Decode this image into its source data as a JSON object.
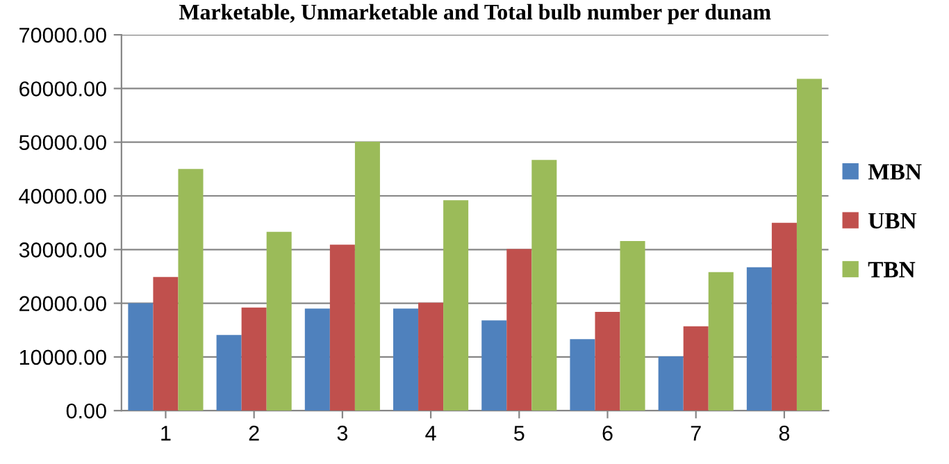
{
  "chart_data": {
    "type": "bar",
    "title": "Marketable, Unmarketable and Total bulb number per dunam",
    "categories": [
      "1",
      "2",
      "3",
      "4",
      "5",
      "6",
      "7",
      "8"
    ],
    "series": [
      {
        "name": "MBN",
        "color": "#4f81bd",
        "values": [
          20000,
          14100,
          19000,
          19000,
          16800,
          13300,
          10100,
          26700
        ]
      },
      {
        "name": "UBN",
        "color": "#c0504d",
        "values": [
          24900,
          19200,
          30900,
          20100,
          30100,
          18400,
          15700,
          35000
        ]
      },
      {
        "name": "TBN",
        "color": "#9bbb59",
        "values": [
          45000,
          33300,
          50100,
          39200,
          46700,
          31600,
          25800,
          61800
        ]
      }
    ],
    "ylim": [
      0,
      70000
    ],
    "yticks": [
      {
        "value": 0,
        "label": "0.00"
      },
      {
        "value": 10000,
        "label": "10000.00"
      },
      {
        "value": 20000,
        "label": "20000.00"
      },
      {
        "value": 30000,
        "label": "30000.00"
      },
      {
        "value": 40000,
        "label": "40000.00"
      },
      {
        "value": 50000,
        "label": "50000.00"
      },
      {
        "value": 60000,
        "label": "60000.00"
      },
      {
        "value": 70000,
        "label": "70000.00"
      }
    ],
    "grid": "y",
    "legend": "right"
  }
}
